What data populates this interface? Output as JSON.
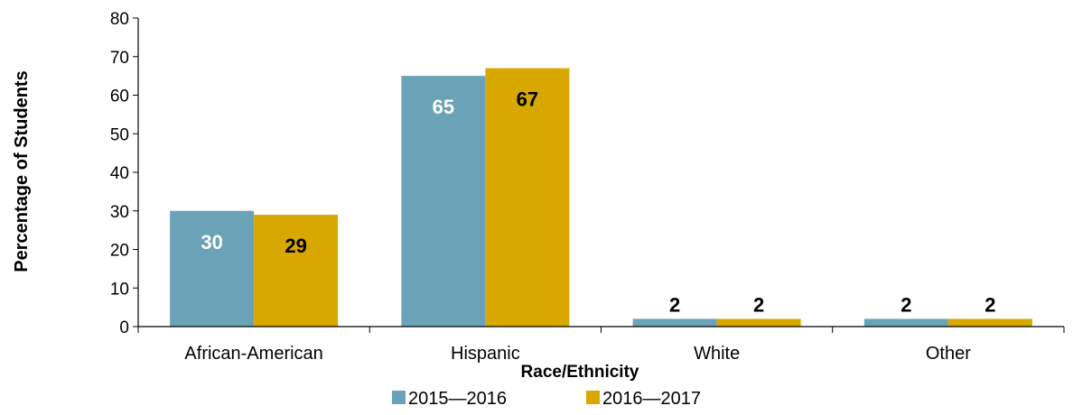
{
  "chart_data": {
    "type": "bar",
    "categories": [
      "African-American",
      "Hispanic",
      "White",
      "Other"
    ],
    "series": [
      {
        "name": "2015—2016",
        "values": [
          30,
          65,
          2,
          2
        ],
        "color": "#6aa3b8",
        "label_color": "#ffffff"
      },
      {
        "name": "2016—2017",
        "values": [
          29,
          67,
          2,
          2
        ],
        "color": "#d9a800",
        "label_color": "#000000"
      }
    ],
    "xlabel": "Race/Ethnicity",
    "ylabel": "Percentage of Students",
    "ylim": [
      0,
      80
    ],
    "yticks": [
      "0",
      "10",
      "20",
      "30",
      "40",
      "50",
      "60",
      "70",
      "80"
    ],
    "grid": false,
    "legend": "bottom-center"
  }
}
